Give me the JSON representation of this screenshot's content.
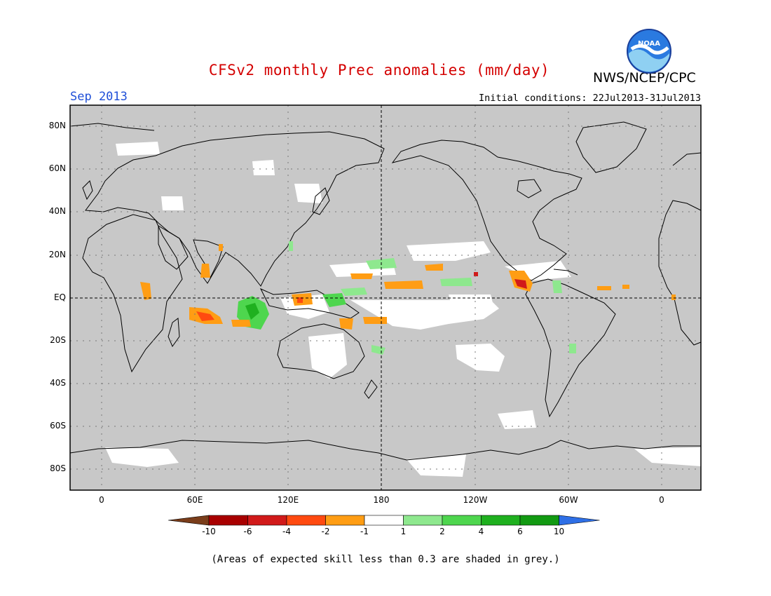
{
  "title": "CFSv2 monthly Prec anomalies (mm/day)",
  "month": "Sep 2013",
  "agency": "NWS/NCEP/CPC",
  "logo_text": "NOAA",
  "initial_conditions": "Initial conditions: 22Jul2013-31Jul2013",
  "footnote": "(Areas of expected skill less than 0.3 are shaded in grey.)",
  "map": {
    "background_color": "#c8c8c8",
    "lat_labels": [
      "80N",
      "60N",
      "40N",
      "20N",
      "EQ",
      "20S",
      "40S",
      "60S",
      "80S"
    ],
    "lon_labels": [
      "0",
      "60E",
      "120E",
      "180",
      "120W",
      "60W",
      "0"
    ]
  },
  "colorbar": {
    "labels": [
      "-10",
      "-6",
      "-4",
      "-2",
      "-1",
      "1",
      "2",
      "4",
      "6",
      "10"
    ],
    "colors": [
      "#7a3d1a",
      "#a80000",
      "#d11a1a",
      "#ff4a10",
      "#ff9d14",
      "#ffffff",
      "#8ee88e",
      "#4ed64e",
      "#1fb01f",
      "#129a12",
      "#2e6fe6"
    ]
  }
}
